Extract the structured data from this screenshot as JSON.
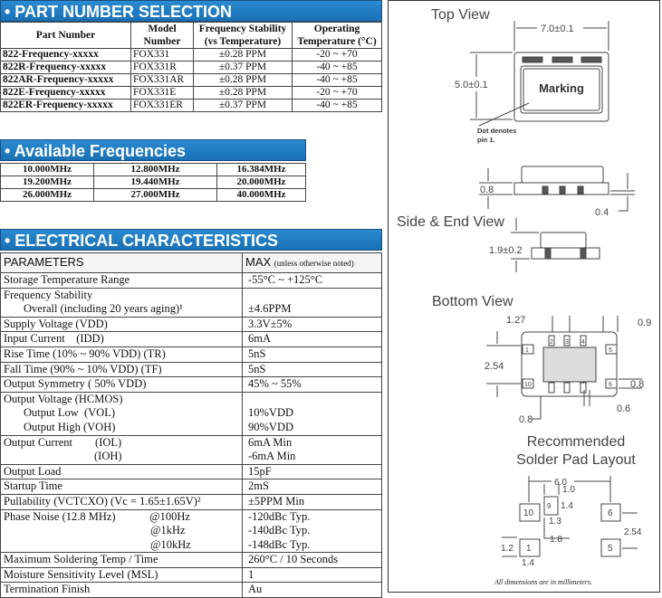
{
  "part_number": {
    "title": "• PART NUMBER SELECTION",
    "headers": [
      "Part Number",
      "Model Number",
      "Frequency Stability (vs Temperature)",
      "Operating Temperature (°C)"
    ],
    "rows": [
      [
        "822-Frequency-xxxxx",
        "FOX331",
        "±0.28 PPM",
        "-20 ~ +70"
      ],
      [
        "822R-Frequency-xxxxx",
        "FOX331R",
        "±0.37 PPM",
        "-40 ~ +85"
      ],
      [
        "822AR-Frequency-xxxxx",
        "FOX331AR",
        "±0.28 PPM",
        "-40 ~ +85"
      ],
      [
        "822E-Frequency-xxxxx",
        "FOX331E",
        "±0.28 PPM",
        "-20 ~ +70"
      ],
      [
        "822ER-Frequency-xxxxx",
        "FOX331ER",
        "±0.37 PPM",
        "-40 ~ +85"
      ]
    ]
  },
  "frequencies": {
    "title": "• Available Frequencies",
    "rows": [
      [
        "10.000MHz",
        "12.800MHz",
        "16.384MHz"
      ],
      [
        "19.200MHz",
        "19.440MHz",
        "20.000MHz"
      ],
      [
        "26.000MHz",
        "27.000MHz",
        "40.000MHz"
      ]
    ]
  },
  "electrical": {
    "title": "• ELECTRICAL CHARACTERISTICS",
    "param_header": "PARAMETERS",
    "max_header": "MAX",
    "max_note": "(unless otherwise noted)",
    "rows": [
      {
        "p": [
          "Storage Temperature Range"
        ],
        "v": [
          "-55°C ~ +125°C"
        ]
      },
      {
        "p": [
          "Frequency Stability",
          "Overall (including 20 years aging)¹"
        ],
        "v": [
          "",
          "±4.6PPM"
        ]
      },
      {
        "p": [
          "Supply Voltage (VDD)"
        ],
        "v": [
          "3.3V±5%"
        ]
      },
      {
        "p": [
          "Input Current    (IDD)"
        ],
        "v": [
          "6mA"
        ]
      },
      {
        "p": [
          "Rise Time (10% ~ 90% VDD) (TR)"
        ],
        "v": [
          "5nS"
        ]
      },
      {
        "p": [
          "Fall Time (90% ~ 10% VDD) (TF)"
        ],
        "v": [
          "5nS"
        ]
      },
      {
        "p": [
          "Output Symmetry ( 50% VDD)"
        ],
        "v": [
          "45% ~ 55%"
        ]
      },
      {
        "p": [
          "Output Voltage (HCMOS)",
          "Output Low  (VOL)",
          "Output High (VOH)"
        ],
        "v": [
          "",
          "10%VDD",
          "90%VDD"
        ]
      },
      {
        "p": [
          "Output Current        (IOL)",
          "(IOH)"
        ],
        "v": [
          "6mA Min",
          "-6mA Min"
        ]
      },
      {
        "p": [
          "Output Load"
        ],
        "v": [
          "15pF"
        ]
      },
      {
        "p": [
          "Startup Time"
        ],
        "v": [
          "2mS"
        ]
      },
      {
        "p": [
          "Pullability (VCTCXO) (Vc = 1.65±1.65V)²"
        ],
        "v": [
          "±5PPM Min"
        ]
      },
      {
        "p": [
          "Phase Noise (12.8 MHz)            @100Hz",
          "@1kHz",
          "@10kHz"
        ],
        "v": [
          "-120dBc Typ.",
          "-140dBc Typ.",
          "-148dBc Typ."
        ]
      },
      {
        "p": [
          "Maximum Soldering Temp / Time"
        ],
        "v": [
          "260°C / 10 Seconds"
        ]
      },
      {
        "p": [
          "Moisture Sensitivity Level (MSL)"
        ],
        "v": [
          "1"
        ]
      },
      {
        "p": [
          "Termination Finish"
        ],
        "v": [
          "Au"
        ]
      }
    ]
  },
  "drawing": {
    "top_view": "Top View",
    "width_dim": "7.0±0.1",
    "height_dim": "5.0±0.1",
    "marking": "Marking",
    "dot_note_1": "Dot denotes",
    "dot_note_2": "pin 1.",
    "side_title": "Side & End View",
    "side_08": "0.8",
    "side_04": "0.4",
    "end_height": "1.9±0.2",
    "bottom_view": "Bottom View",
    "b_127": "1.27",
    "b_09": "0.9",
    "b_254": "2.54",
    "b_08r": "0.8",
    "b_06": "0.6",
    "b_08": "0.8",
    "pins": {
      "p1": "1",
      "p2": "2",
      "p3": "3",
      "p4": "4",
      "p5": "5",
      "p6": "6",
      "p10": "10"
    },
    "solder_title_1": "Recommended",
    "solder_title_2": "Solder Pad Layout",
    "s_60": "6.0",
    "s_10": "1.0",
    "s_14a": "1.4",
    "s_13": "1.3",
    "s_18": "1.8",
    "s_254": "2.54",
    "s_12": "1.2",
    "s_14b": "1.4",
    "pad_10": "10",
    "pad_9": "9",
    "pad_6": "6",
    "pad_1": "1",
    "pad_5": "5",
    "footer": "All dimensions are in millimeters."
  },
  "colors": {
    "header_blue": "#1f7dc0"
  }
}
